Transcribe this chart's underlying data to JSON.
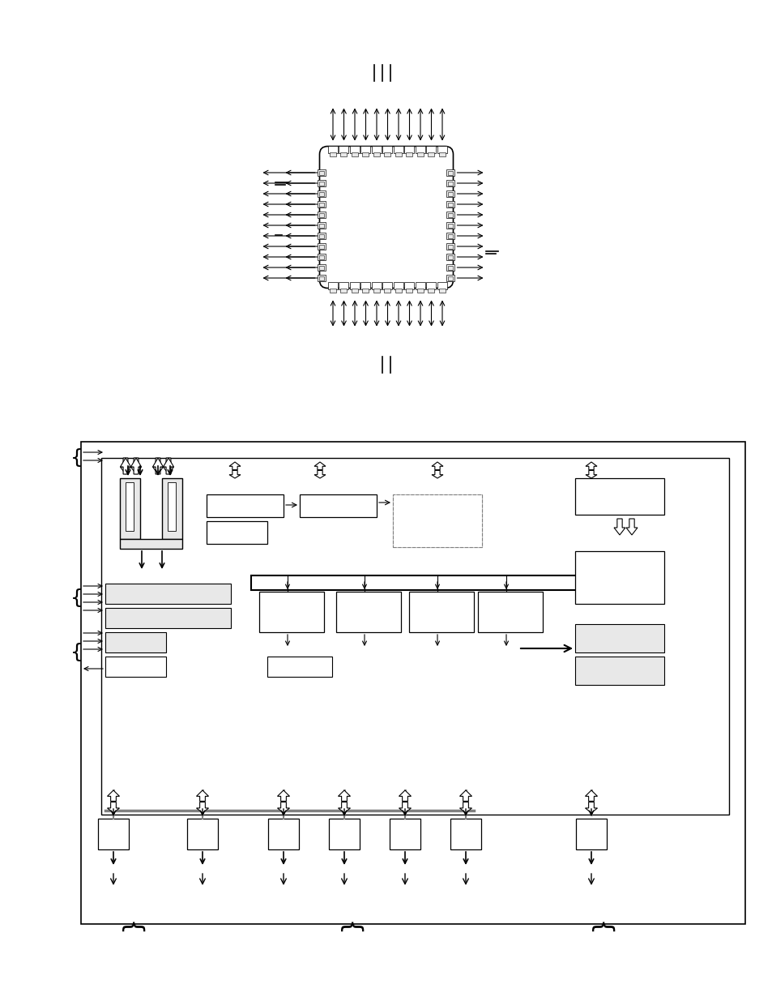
{
  "bg_color": "#ffffff",
  "line_color": "#000000",
  "chip_color": "#ffffff",
  "chip_outline": "#000000",
  "gray_fill": "#e8e8e8",
  "light_gray": "#cccccc"
}
